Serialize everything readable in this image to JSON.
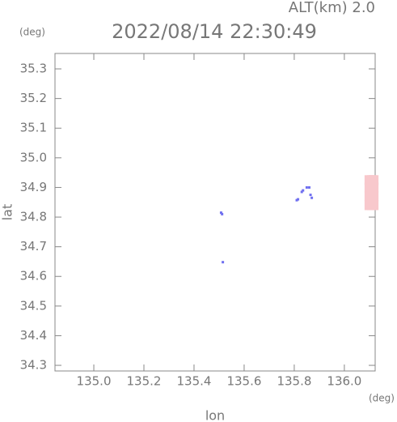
{
  "chart_data": {
    "type": "scatter",
    "title": "2022/08/14 22:30:49",
    "subtitle": "ALT(km) 2.0",
    "x_unit": "(deg)",
    "y_unit": "(deg)",
    "xlabel": "lon",
    "ylabel": "lat",
    "xlim": [
      134.845,
      136.123
    ],
    "ylim": [
      34.281,
      35.352
    ],
    "xticks": [
      {
        "value": 135.0,
        "label": "135.0"
      },
      135.2,
      135.4,
      135.6,
      135.8,
      {
        "value": 136.0,
        "label": "136.0"
      }
    ],
    "yticks": [
      34.3,
      34.4,
      34.5,
      34.6,
      34.7,
      34.8,
      34.9,
      {
        "value": 35.0,
        "label": "35.0"
      },
      35.1,
      35.2,
      35.3
    ],
    "series": [
      {
        "color": "#6f6ff0",
        "marker_size": 3,
        "x": [
          135.508,
          135.512,
          135.515,
          135.81,
          135.815,
          135.83,
          135.835,
          135.85,
          135.86,
          135.865,
          135.87
        ],
        "values": [
          34.815,
          34.81,
          34.648,
          34.857,
          34.86,
          34.885,
          34.89,
          34.9,
          34.9,
          34.875,
          34.865
        ]
      },
      {
        "color": "#f8c8cc",
        "marker_size": 12,
        "x": [
          136.1,
          136.1,
          136.1,
          136.1,
          136.11,
          136.11,
          136.11,
          136.11,
          136.117,
          136.117,
          136.117,
          136.117
        ],
        "values": [
          34.925,
          34.9,
          34.87,
          34.84,
          34.925,
          34.9,
          34.87,
          34.84,
          34.925,
          34.9,
          34.87,
          34.84
        ]
      }
    ]
  }
}
